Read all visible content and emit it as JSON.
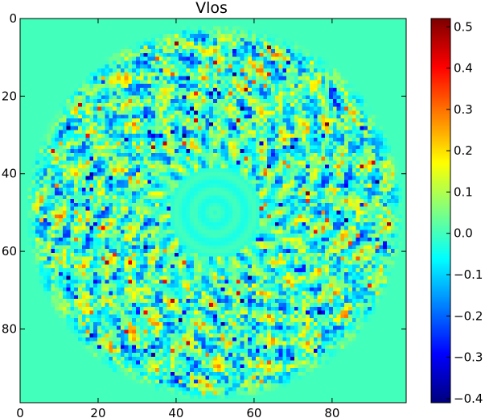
{
  "chart_data": {
    "type": "heatmap",
    "title": "Vlos",
    "xlabel": "",
    "ylabel": "",
    "grid_size": [
      100,
      100
    ],
    "xlim": [
      0,
      99
    ],
    "ylim": [
      99,
      0
    ],
    "x_ticks": [
      0,
      20,
      40,
      60,
      80
    ],
    "y_ticks": [
      0,
      20,
      40,
      60,
      80
    ],
    "x_tick_labels": [
      "0",
      "20",
      "40",
      "60",
      "80"
    ],
    "y_tick_labels": [
      "0",
      "20",
      "40",
      "60",
      "80"
    ],
    "colormap": "jet",
    "background_value": 0.0,
    "value_range": [
      -0.41,
      0.52
    ],
    "disk": {
      "center": [
        50,
        50
      ],
      "outer_radius": 49,
      "inner_smooth_radius": 12,
      "petal_count": 22,
      "description": "circular disk of alternating positive (yellow) and negative (blue) lobes around a smooth central region"
    },
    "colorbar": {
      "min": -0.41,
      "max": 0.52,
      "ticks": [
        -0.4,
        -0.3,
        -0.2,
        -0.1,
        0.0,
        0.1,
        0.2,
        0.3,
        0.4,
        0.5
      ],
      "tick_labels": [
        "−0.4",
        "−0.3",
        "−0.2",
        "−0.1",
        "0.0",
        "0.1",
        "0.2",
        "0.3",
        "0.4",
        "0.5"
      ]
    }
  }
}
